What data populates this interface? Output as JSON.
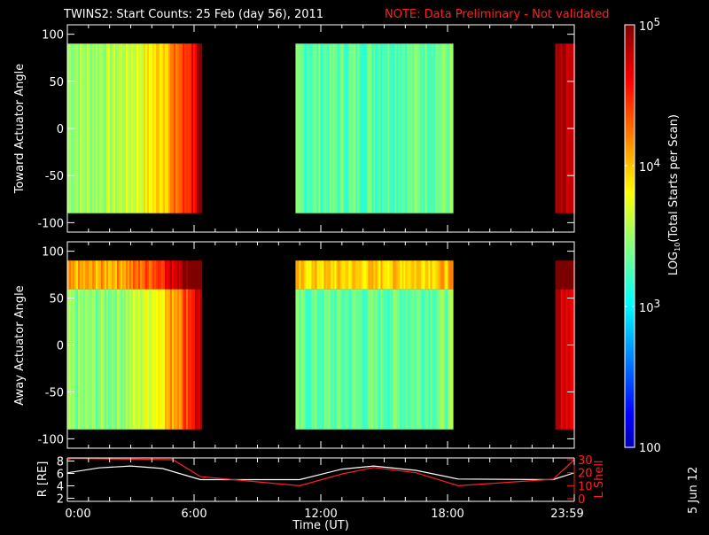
{
  "title": "TWINS2: Start Counts: 25 Feb (day  56), 2011",
  "note": "NOTE: Data Preliminary - Not validated",
  "side_date": "5 Jun 12",
  "colors": {
    "note": "#ff2020",
    "lshell": "#ff2020",
    "r_line": "#ffffff",
    "axes": "#ffffff"
  },
  "chart_data": [
    {
      "type": "heatmap",
      "ylabel": "Toward Actuator Angle",
      "ylim": [
        -110,
        110
      ],
      "yticks": [
        "100",
        "50",
        "0",
        "-50",
        "-100"
      ],
      "ytick_values": [
        100,
        50,
        0,
        -50,
        -100
      ],
      "angle_range": [
        -90,
        90
      ],
      "segments": [
        {
          "start_h": 0.0,
          "end_h": 6.35,
          "log_counts_start": 3.6,
          "log_counts_end": 4.9
        },
        {
          "start_h": 10.8,
          "end_h": 18.2,
          "log_counts_start": 3.4,
          "log_counts_end": 3.5
        },
        {
          "start_h": 23.1,
          "end_h": 24.0,
          "log_counts_start": 4.8,
          "log_counts_end": 4.6
        }
      ]
    },
    {
      "type": "heatmap",
      "ylabel": "Away Actuator Angle",
      "ylim": [
        -110,
        110
      ],
      "yticks": [
        "100",
        "50",
        "0",
        "-50",
        "-100"
      ],
      "ytick_values": [
        100,
        50,
        0,
        -50,
        -100
      ],
      "angle_range": [
        -90,
        90
      ],
      "segments": [
        {
          "start_h": 0.0,
          "end_h": 6.35,
          "log_counts_start": 3.5,
          "log_counts_end": 4.9
        },
        {
          "start_h": 10.8,
          "end_h": 18.2,
          "log_counts_start": 3.4,
          "log_counts_end": 3.5
        },
        {
          "start_h": 23.1,
          "end_h": 24.0,
          "log_counts_start": 4.8,
          "log_counts_end": 4.6
        }
      ]
    },
    {
      "type": "line",
      "xlabel": "Time (UT)",
      "xticks": [
        "0:00",
        "6:00",
        "12:00",
        "18:00",
        "23:59"
      ],
      "xtick_values": [
        0,
        6,
        12,
        18,
        24
      ],
      "xlim": [
        0,
        24
      ],
      "ylabel": "R [RE]",
      "ylim": [
        1.5,
        8.5
      ],
      "yticks": [
        "8",
        "6",
        "4",
        "2"
      ],
      "ytick_values": [
        8,
        6,
        4,
        2
      ],
      "y2label": "L Shell",
      "y2lim": [
        0,
        30
      ],
      "y2ticks": [
        "30",
        "20",
        "10",
        "0"
      ],
      "y2tick_values": [
        30,
        20,
        10,
        0
      ],
      "series": [
        {
          "name": "R",
          "x": [
            0,
            1.5,
            3,
            4.5,
            6.3,
            11,
            13,
            14.5,
            16.5,
            18.5,
            23,
            24
          ],
          "y": [
            6.1,
            6.9,
            7.2,
            6.8,
            5.0,
            5.0,
            6.7,
            7.2,
            6.5,
            5.1,
            5.0,
            6.1
          ]
        },
        {
          "name": "L Shell",
          "x": [
            0,
            0.2,
            5.0,
            6.3,
            11,
            13,
            14.5,
            16.5,
            18.5,
            23,
            24
          ],
          "y": [
            30,
            31,
            30,
            17,
            10,
            19,
            24,
            20,
            10,
            15,
            30
          ]
        }
      ]
    }
  ],
  "colorbar": {
    "label": "LOG10(Total Starts per Scan)",
    "label_main": "LOG",
    "label_sub": "10",
    "label_rest": "(Total Starts per Scan)",
    "ticks": [
      {
        "base": "10",
        "exp": "5",
        "value": 100000
      },
      {
        "base": "10",
        "exp": "4",
        "value": 10000
      },
      {
        "base": "10",
        "exp": "3",
        "value": 1000
      }
    ],
    "min_label": "100",
    "range_log": [
      2,
      5
    ]
  }
}
